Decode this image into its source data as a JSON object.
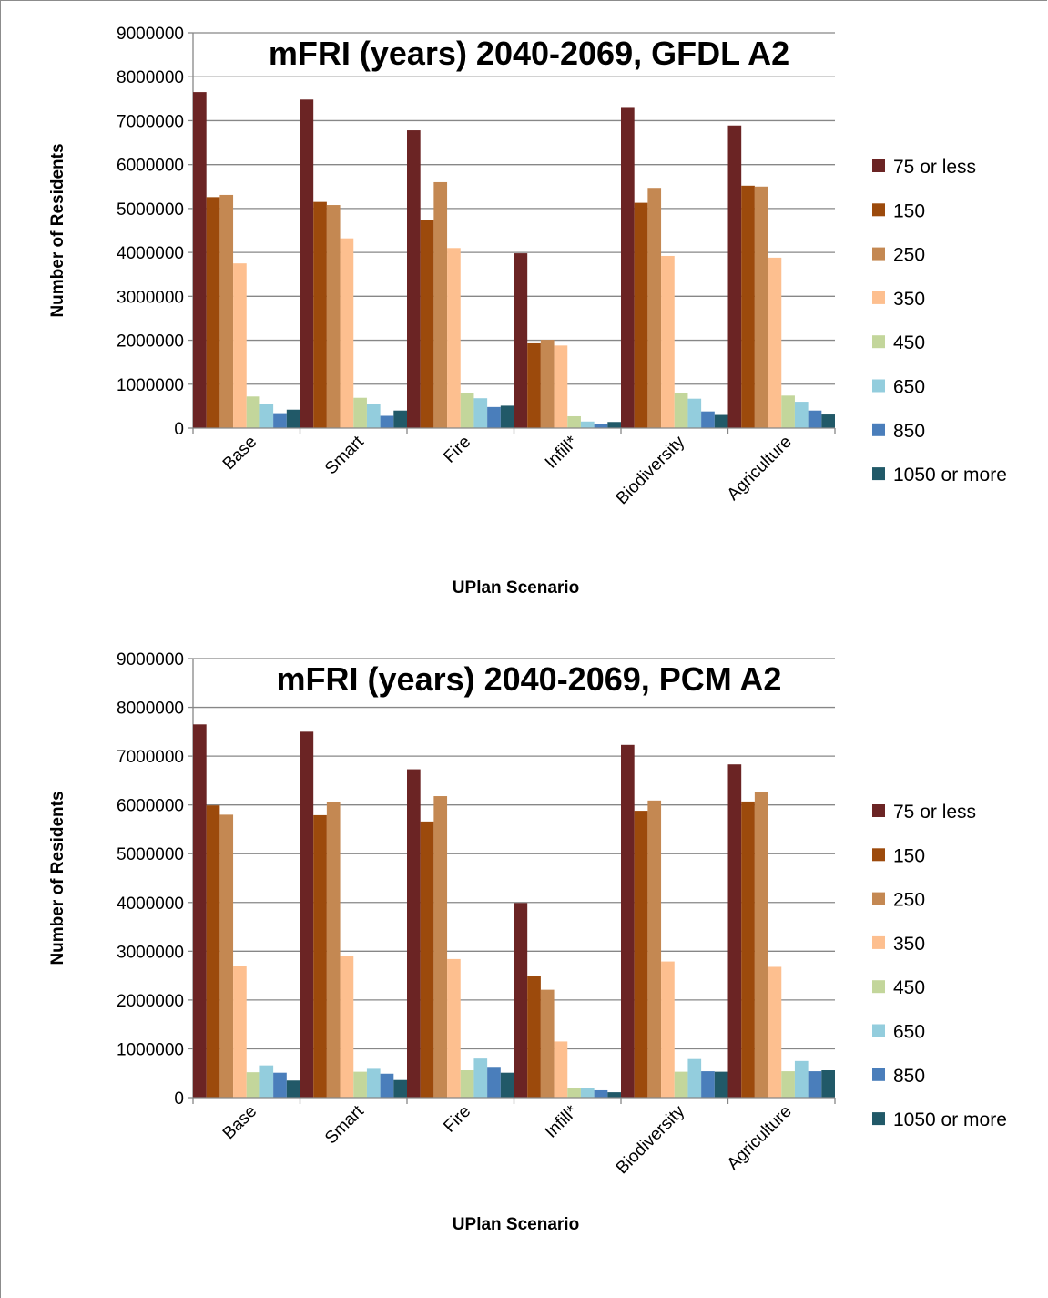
{
  "colors": {
    "series": [
      "#6b2424",
      "#9c4a0c",
      "#c48852",
      "#fdbf8f",
      "#c3d69b",
      "#93cddd",
      "#4a7ebb",
      "#215968"
    ],
    "gridline": "#878787",
    "axis": "#878787"
  },
  "chart_data": [
    {
      "type": "bar",
      "title": "mFRI (years) 2040-2069, GFDL A2",
      "xlabel": "UPlan Scenario",
      "ylabel": "Number of Residents",
      "ylim": [
        0,
        9000000
      ],
      "y_ticks": [
        "0",
        "1000000",
        "2000000",
        "3000000",
        "4000000",
        "5000000",
        "6000000",
        "7000000",
        "8000000",
        "9000000"
      ],
      "grid": true,
      "legend_position": "right",
      "categories": [
        "Base",
        "Smart",
        "Fire",
        "Infill*",
        "Biodiversity",
        "Agriculture"
      ],
      "series": [
        {
          "name": "75 or less",
          "values": [
            7650000,
            7480000,
            6780000,
            3980000,
            7290000,
            6890000
          ]
        },
        {
          "name": "150",
          "values": [
            5260000,
            5150000,
            4740000,
            1930000,
            5130000,
            5520000
          ]
        },
        {
          "name": "250",
          "values": [
            5310000,
            5080000,
            5600000,
            2010000,
            5470000,
            5500000
          ]
        },
        {
          "name": "350",
          "values": [
            3750000,
            4320000,
            4100000,
            1880000,
            3920000,
            3880000
          ]
        },
        {
          "name": "450",
          "values": [
            720000,
            690000,
            790000,
            270000,
            800000,
            740000
          ]
        },
        {
          "name": "650",
          "values": [
            540000,
            540000,
            680000,
            150000,
            670000,
            600000
          ]
        },
        {
          "name": "850",
          "values": [
            340000,
            280000,
            480000,
            100000,
            380000,
            400000
          ]
        },
        {
          "name": "1050 or more",
          "values": [
            420000,
            400000,
            510000,
            140000,
            300000,
            310000
          ]
        }
      ]
    },
    {
      "type": "bar",
      "title": "mFRI (years) 2040-2069, PCM A2",
      "xlabel": "UPlan Scenario",
      "ylabel": "Number of Residents",
      "ylim": [
        0,
        9000000
      ],
      "y_ticks": [
        "0",
        "1000000",
        "2000000",
        "3000000",
        "4000000",
        "5000000",
        "6000000",
        "7000000",
        "8000000",
        "9000000"
      ],
      "grid": true,
      "legend_position": "right",
      "categories": [
        "Base",
        "Smart",
        "Fire",
        "Infill*",
        "Biodiversity",
        "Agriculture"
      ],
      "series": [
        {
          "name": "75 or less",
          "values": [
            7650000,
            7500000,
            6730000,
            3990000,
            7230000,
            6830000
          ]
        },
        {
          "name": "150",
          "values": [
            5990000,
            5790000,
            5660000,
            2490000,
            5880000,
            6070000
          ]
        },
        {
          "name": "250",
          "values": [
            5800000,
            6060000,
            6180000,
            2210000,
            6090000,
            6260000
          ]
        },
        {
          "name": "350",
          "values": [
            2700000,
            2910000,
            2840000,
            1150000,
            2790000,
            2680000
          ]
        },
        {
          "name": "450",
          "values": [
            520000,
            530000,
            560000,
            190000,
            530000,
            540000
          ]
        },
        {
          "name": "650",
          "values": [
            660000,
            590000,
            800000,
            200000,
            790000,
            750000
          ]
        },
        {
          "name": "850",
          "values": [
            510000,
            490000,
            630000,
            150000,
            540000,
            540000
          ]
        },
        {
          "name": "1050 or more",
          "values": [
            350000,
            360000,
            510000,
            110000,
            530000,
            560000
          ]
        }
      ]
    }
  ]
}
